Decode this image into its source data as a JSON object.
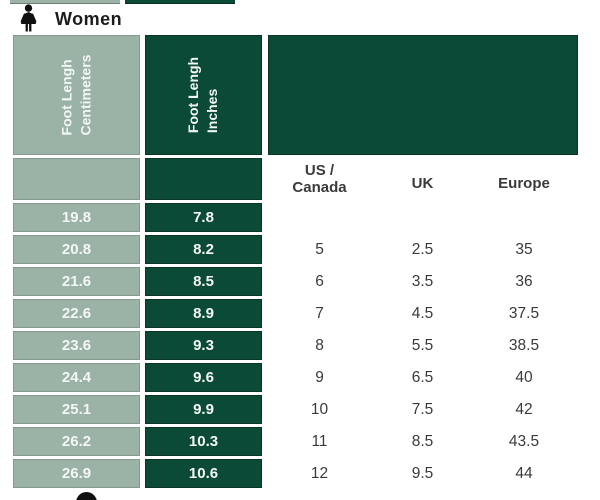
{
  "page": {
    "section_title": "Women"
  },
  "table": {
    "headers": {
      "cm": "Foot Lengh\nCentimeters",
      "inches": "Foot Lengh\nInches"
    },
    "region_headers": {
      "us": "US /\nCanada",
      "uk": "UK",
      "europe": "Europe"
    },
    "rows": [
      {
        "cm": "19.8",
        "in": "7.8",
        "us": "",
        "uk": "",
        "eu": ""
      },
      {
        "cm": "20.8",
        "in": "8.2",
        "us": "5",
        "uk": "2.5",
        "eu": "35"
      },
      {
        "cm": "21.6",
        "in": "8.5",
        "us": "6",
        "uk": "3.5",
        "eu": "36"
      },
      {
        "cm": "22.6",
        "in": "8.9",
        "us": "7",
        "uk": "4.5",
        "eu": "37.5"
      },
      {
        "cm": "23.6",
        "in": "9.3",
        "us": "8",
        "uk": "5.5",
        "eu": "38.5"
      },
      {
        "cm": "24.4",
        "in": "9.6",
        "us": "9",
        "uk": "6.5",
        "eu": "40"
      },
      {
        "cm": "25.1",
        "in": "9.9",
        "us": "10",
        "uk": "7.5",
        "eu": "42"
      },
      {
        "cm": "26.2",
        "in": "10.3",
        "us": "11",
        "uk": "8.5",
        "eu": "43.5"
      },
      {
        "cm": "26.9",
        "in": "10.6",
        "us": "12",
        "uk": "9.5",
        "eu": "44"
      }
    ]
  },
  "colors": {
    "sage_green": "#9BB2A7",
    "dark_green": "#0C4A38",
    "header_text": "#F3F7F4",
    "label_text": "#3A3A3A"
  }
}
